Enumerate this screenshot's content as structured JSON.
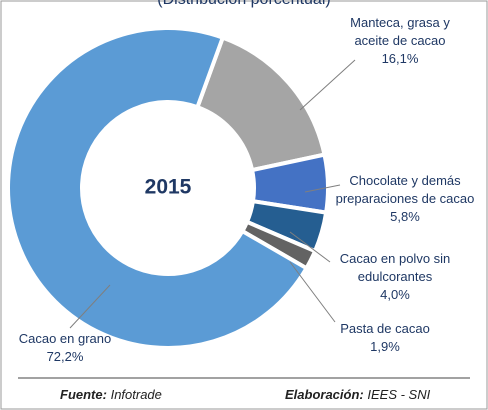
{
  "chart_data": {
    "type": "donut",
    "title": "(Distribución porcentual)",
    "center_label": "2015",
    "categories": [
      "Manteca, grasa y aceite de cacao",
      "Chocolate y demás preparaciones de cacao",
      "Cacao en polvo sin edulcorantes",
      "Pasta de cacao",
      "Cacao en grano"
    ],
    "values": [
      16.1,
      5.8,
      4.0,
      1.9,
      72.2
    ],
    "value_labels": [
      "16,1%",
      "5,8%",
      "4,0%",
      "1,9%",
      "72,2%"
    ],
    "colors": [
      "#a5a5a5",
      "#4472c4",
      "#255e91",
      "#636363",
      "#5b9bd5"
    ]
  },
  "footer": {
    "source_label": "Fuente:",
    "source": "Infotrade",
    "author_label": "Elaboración:",
    "author": "IEES - SNI"
  }
}
